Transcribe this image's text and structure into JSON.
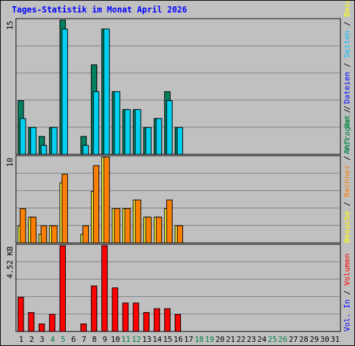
{
  "chart_data": {
    "type": "bar",
    "title": "Tages-Statistik im Monat April 2026",
    "x": [
      "1",
      "2",
      "3",
      "4",
      "5",
      "6",
      "7",
      "8",
      "9",
      "10",
      "11",
      "12",
      "13",
      "14",
      "15",
      "16",
      "17",
      "18",
      "19",
      "20",
      "21",
      "22",
      "23",
      "24",
      "25",
      "26",
      "27",
      "28",
      "29",
      "30",
      "31"
    ],
    "weekend_days": [
      "4",
      "5",
      "11",
      "12",
      "18",
      "19",
      "25",
      "26"
    ],
    "panels": [
      {
        "name": "top",
        "ymax_label": "15",
        "ymax": 15,
        "gridlines": 5,
        "right_labels": [
          {
            "text": "Anfragen",
            "color": "#008040"
          },
          {
            "text": " / ",
            "color": "#000000"
          },
          {
            "text": "Dateien",
            "color": "#0000ff"
          },
          {
            "text": " / ",
            "color": "#000000"
          },
          {
            "text": "Seiten",
            "color": "#00c0ff"
          },
          {
            "text": " / ",
            "color": "#000000"
          },
          {
            "text": "Besuche",
            "color": "#ffff00"
          }
        ],
        "series": [
          {
            "name": "Anfragen",
            "color": "#008060",
            "values": [
              6,
              3,
              2,
              3,
              15,
              0,
              2,
              10,
              14,
              7,
              5,
              5,
              3,
              4,
              7,
              3,
              0,
              0,
              0,
              0,
              0,
              0,
              0,
              0,
              0,
              0,
              0,
              0,
              0,
              0,
              0
            ]
          },
          {
            "name": "Dateien",
            "color": "#00d0f0",
            "values": [
              4,
              3,
              1,
              3,
              14,
              0,
              1,
              7,
              14,
              7,
              5,
              5,
              3,
              4,
              6,
              3,
              0,
              0,
              0,
              0,
              0,
              0,
              0,
              0,
              0,
              0,
              0,
              0,
              0,
              0,
              0
            ]
          }
        ]
      },
      {
        "name": "middle",
        "ymax_label": "10",
        "ymax": 10,
        "gridlines": 5,
        "right_labels": [
          {
            "text": "Besuche",
            "color": "#ffff00"
          },
          {
            "text": " / ",
            "color": "#000000"
          },
          {
            "text": "Rechner",
            "color": "#ff8000"
          },
          {
            "text": " / ",
            "color": "#000000"
          },
          {
            "text": "Vol. Out",
            "color": "#008040"
          },
          {
            "text": " / ",
            "color": "#000000"
          }
        ],
        "series": [
          {
            "name": "Besuche",
            "color": "#ffff40",
            "values": [
              2,
              3,
              1,
              2,
              7,
              0,
              1,
              6,
              10,
              4,
              4,
              5,
              3,
              3,
              4,
              2,
              0,
              0,
              0,
              0,
              0,
              0,
              0,
              0,
              0,
              0,
              0,
              0,
              0,
              0,
              0
            ]
          },
          {
            "name": "Rechner",
            "color": "#ff8000",
            "values": [
              4,
              3,
              2,
              2,
              8,
              0,
              2,
              9,
              10,
              4,
              4,
              5,
              3,
              3,
              5,
              2,
              0,
              0,
              0,
              0,
              0,
              0,
              0,
              0,
              0,
              0,
              0,
              0,
              0,
              0,
              0
            ]
          }
        ]
      },
      {
        "name": "bottom",
        "ymax_label": "4.52 KB",
        "ymax": 4.52,
        "gridlines": 5,
        "right_labels": [
          {
            "text": "Vol. In",
            "color": "#0000ff"
          },
          {
            "text": " / ",
            "color": "#000000"
          },
          {
            "text": "Volumen",
            "color": "#ff0000"
          }
        ],
        "series": [
          {
            "name": "Volumen",
            "color": "#ff0000",
            "values": [
              1.8,
              1.0,
              0.4,
              0.9,
              4.52,
              0,
              0.4,
              2.4,
              4.52,
              2.3,
              1.5,
              1.5,
              1.0,
              1.2,
              1.2,
              0.9,
              0,
              0,
              0,
              0,
              0,
              0,
              0,
              0,
              0,
              0,
              0,
              0,
              0,
              0,
              0
            ]
          }
        ]
      }
    ]
  }
}
